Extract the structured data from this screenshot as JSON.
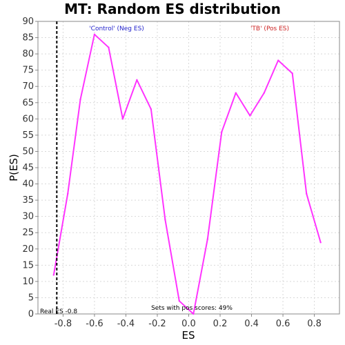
{
  "chart_data": {
    "type": "line",
    "title": "MT: Random ES distribution",
    "xlabel": "ES",
    "ylabel": "P(ES)",
    "xlim": [
      -0.96,
      0.96
    ],
    "ylim": [
      0,
      90
    ],
    "xticks": [
      -0.8,
      -0.6,
      -0.4,
      -0.2,
      0.0,
      0.2,
      0.4,
      0.6,
      0.8
    ],
    "xtick_labels": [
      "-0.8",
      "-0.6",
      "-0.4",
      "-0.2",
      "0.0",
      "0.2",
      "0.4",
      "0.6",
      "0.8"
    ],
    "yticks": [
      0,
      5,
      10,
      15,
      20,
      25,
      30,
      35,
      40,
      45,
      50,
      55,
      60,
      65,
      70,
      75,
      80,
      85,
      90
    ],
    "ytick_labels": [
      "0",
      "5",
      "10",
      "15",
      "20",
      "25",
      "30",
      "35",
      "40",
      "45",
      "50",
      "55",
      "60",
      "65",
      "70",
      "75",
      "80",
      "85",
      "90"
    ],
    "grid": true,
    "series": [
      {
        "color": "#ff33ff",
        "x": [
          -0.86,
          -0.77,
          -0.69,
          -0.6,
          -0.51,
          -0.42,
          -0.33,
          -0.24,
          -0.15,
          -0.06,
          0.03,
          0.12,
          0.21,
          0.3,
          0.39,
          0.48,
          0.57,
          0.66,
          0.75,
          0.84
        ],
        "y": [
          12,
          37,
          66,
          86,
          82,
          60,
          72,
          63,
          29,
          4,
          0,
          23,
          56,
          68,
          61,
          68,
          78,
          74,
          37,
          22
        ]
      }
    ],
    "real_es": {
      "x": -0.84,
      "label": "Real ES -0.8",
      "color": "#000000"
    },
    "annotations": {
      "neg": {
        "text": "'Control' (Neg ES)",
        "color": "#2222cc"
      },
      "pos": {
        "text": "'TB' (Pos ES)",
        "color": "#cc2222"
      },
      "sets": {
        "text": "Sets with pos scores: 49%",
        "color": "#000000"
      }
    }
  }
}
